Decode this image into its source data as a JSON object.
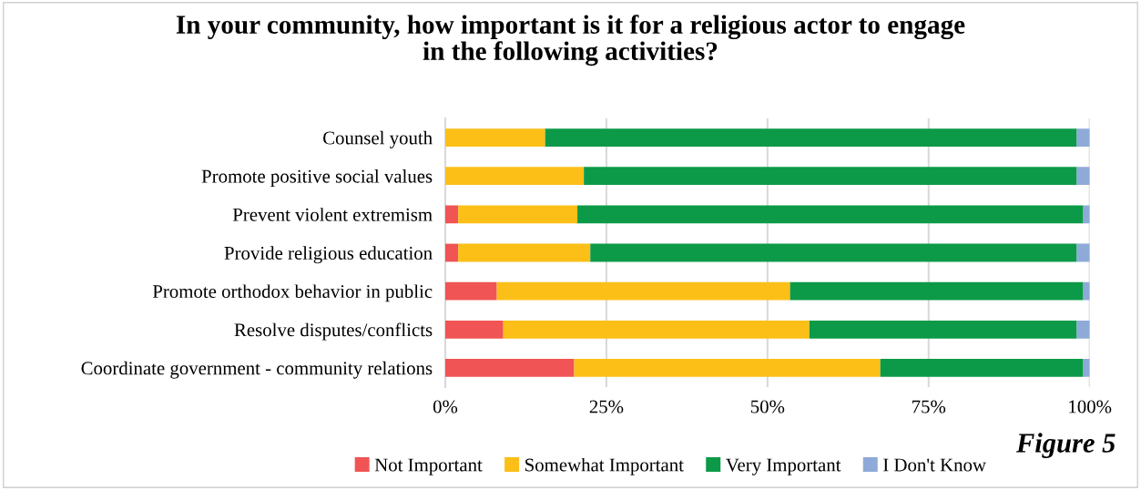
{
  "chart_data": {
    "type": "bar",
    "orientation": "horizontal",
    "stacked": true,
    "title": "In your community, how important is it for a religious actor to engage\nin the following activities?",
    "categories": [
      "Counsel youth",
      "Promote positive social values",
      "Prevent violent extremism",
      "Provide religious education",
      "Promote orthodox behavior in public",
      "Resolve disputes/conflicts",
      "Coordinate government - community relations"
    ],
    "series": [
      {
        "name": "Not Important",
        "color": "#f05454",
        "values": [
          0,
          0,
          2,
          2,
          8,
          9,
          20
        ]
      },
      {
        "name": "Somewhat Important",
        "color": "#fbbf18",
        "values": [
          15.5,
          21.5,
          18.5,
          20.5,
          45.5,
          47.5,
          47.5
        ]
      },
      {
        "name": "Very Important",
        "color": "#0c9a48",
        "values": [
          82.5,
          76.5,
          78.5,
          75.5,
          45.5,
          41.5,
          31.5
        ]
      },
      {
        "name": "I Don't Know",
        "color": "#8eaad8",
        "values": [
          2,
          2,
          1,
          2,
          1,
          2,
          1
        ]
      }
    ],
    "xlim": [
      0,
      100
    ],
    "xticks": [
      {
        "value": 0,
        "label": "0%"
      },
      {
        "value": 25,
        "label": "25%"
      },
      {
        "value": 50,
        "label": "50%"
      },
      {
        "value": 75,
        "label": "75%"
      },
      {
        "value": 100,
        "label": "100%"
      }
    ],
    "grid": "x",
    "legend": "bottom",
    "annotations": [
      "Figure 5"
    ]
  }
}
